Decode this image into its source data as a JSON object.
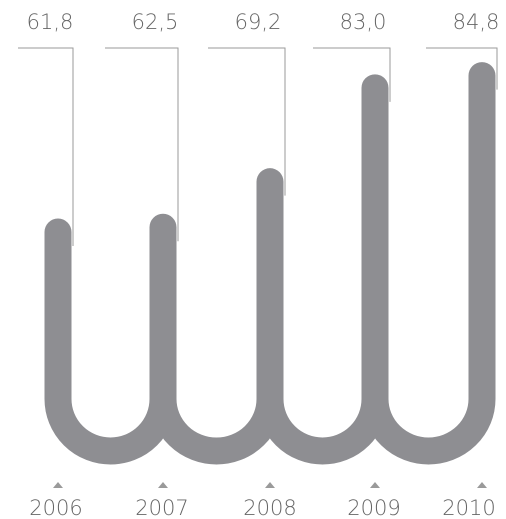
{
  "chart_data": {
    "type": "bar",
    "categories": [
      "2006",
      "2007",
      "2008",
      "2009",
      "2010"
    ],
    "values": [
      61.8,
      62.5,
      69.2,
      83.0,
      84.8
    ],
    "value_labels": [
      "61,8",
      "62,5",
      "69,2",
      "83,0",
      "84,8"
    ],
    "title": "",
    "xlabel": "",
    "ylabel": "",
    "grid": false,
    "legend": "none",
    "colors": {
      "bar": "#8e8e92",
      "leader": "#9a9a9a",
      "text": "#666666"
    }
  }
}
